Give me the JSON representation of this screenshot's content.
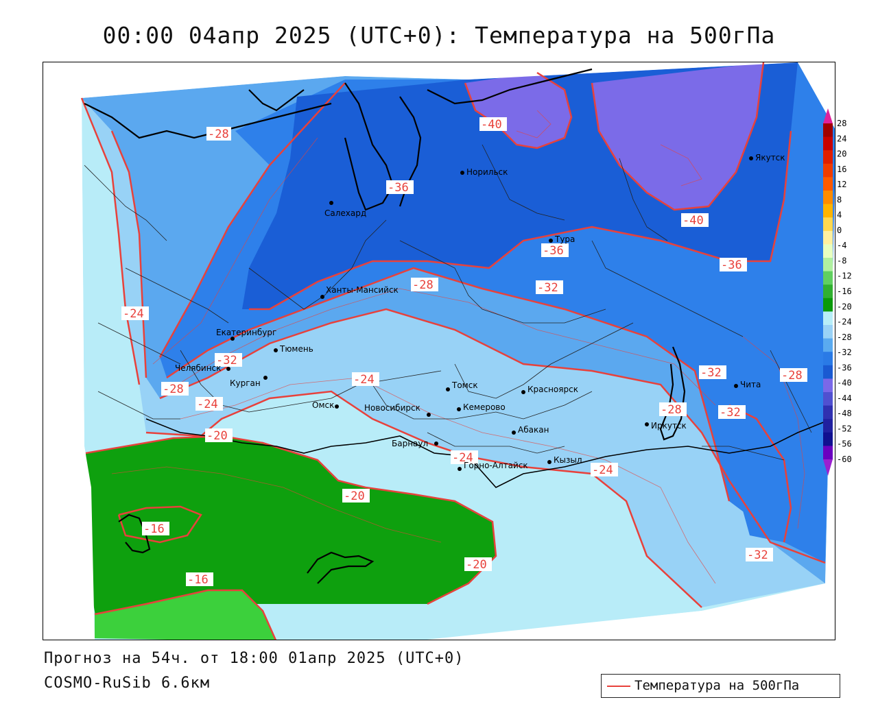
{
  "title": "00:00 04апр 2025 (UTC+0): Температура на 500гПа",
  "forecast_info": "Прогноз на 54ч. от 18:00 01апр 2025 (UTC+0)",
  "model_name": "COSMO-RuSib 6.6км",
  "legend": {
    "label": "Температура на 500гПа",
    "line_color": "#e8413b"
  },
  "colorbar": {
    "labels": [
      "28",
      "24",
      "20",
      "16",
      "12",
      "8",
      "4",
      "0",
      "-4",
      "-8",
      "-12",
      "-16",
      "-20",
      "-24",
      "-28",
      "-32",
      "-36",
      "-40",
      "-44",
      "-48",
      "-52",
      "-56",
      "-60"
    ],
    "colors": [
      "#a00000",
      "#c80000",
      "#e01e00",
      "#f03c00",
      "#ff5a00",
      "#ff8c00",
      "#ffb400",
      "#ffd850",
      "#fff0a0",
      "#e8ffc0",
      "#b0f0a0",
      "#60d060",
      "#30b030",
      "#0a9a0a",
      "#b8eef8",
      "#9ad2f6",
      "#5aaaf0",
      "#2a7ae6",
      "#1a5ad2",
      "#7a68e8",
      "#5050d0",
      "#3030b0",
      "#2020a0",
      "#101090",
      "#6a00c0"
    ],
    "top_arrow_color": "#e0209a",
    "bottom_arrow_color": "#9a20d0"
  },
  "colors": {
    "outside": "#ffffff",
    "c_m40": "#7b6be8",
    "c_m36": "#1a5ed6",
    "c_m32": "#2e80ea",
    "c_m28": "#5ba8ef",
    "c_m24": "#98d2f6",
    "c_m20": "#b8ecf8",
    "c_m16": "#0ea00e",
    "c_m12": "#3cd03c",
    "isotherm": "#e8413b",
    "coast": "#000000",
    "border": "#222222"
  },
  "isotherm_labels": [
    {
      "text": "-28"
    },
    {
      "text": "-40"
    },
    {
      "text": "-36"
    },
    {
      "text": "-40"
    },
    {
      "text": "-36"
    },
    {
      "text": "-36"
    },
    {
      "text": "-28"
    },
    {
      "text": "-32"
    },
    {
      "text": "-24"
    },
    {
      "text": "-32"
    },
    {
      "text": "-28"
    },
    {
      "text": "-24"
    },
    {
      "text": "-24"
    },
    {
      "text": "-20"
    },
    {
      "text": "-24"
    },
    {
      "text": "-24"
    },
    {
      "text": "-20"
    },
    {
      "text": "-16"
    },
    {
      "text": "-16"
    },
    {
      "text": "-20"
    },
    {
      "text": "-32"
    },
    {
      "text": "-32"
    },
    {
      "text": "-28"
    },
    {
      "text": "-28"
    },
    {
      "text": "-32"
    }
  ],
  "cities": [
    {
      "name": "Норильск"
    },
    {
      "name": "Якутск"
    },
    {
      "name": "Салехард"
    },
    {
      "name": "Тура"
    },
    {
      "name": "Ханты-Мансийск"
    },
    {
      "name": "Екатеринбург"
    },
    {
      "name": "Тюмень"
    },
    {
      "name": "Челябинск"
    },
    {
      "name": "Курган"
    },
    {
      "name": "Омск"
    },
    {
      "name": "Новосибирск"
    },
    {
      "name": "Томск"
    },
    {
      "name": "Кемерово"
    },
    {
      "name": "Красноярск"
    },
    {
      "name": "Абакан"
    },
    {
      "name": "Барнаул"
    },
    {
      "name": "Горно-Алтайск"
    },
    {
      "name": "Кызыл"
    },
    {
      "name": "Иркутск"
    },
    {
      "name": "Чита"
    }
  ]
}
